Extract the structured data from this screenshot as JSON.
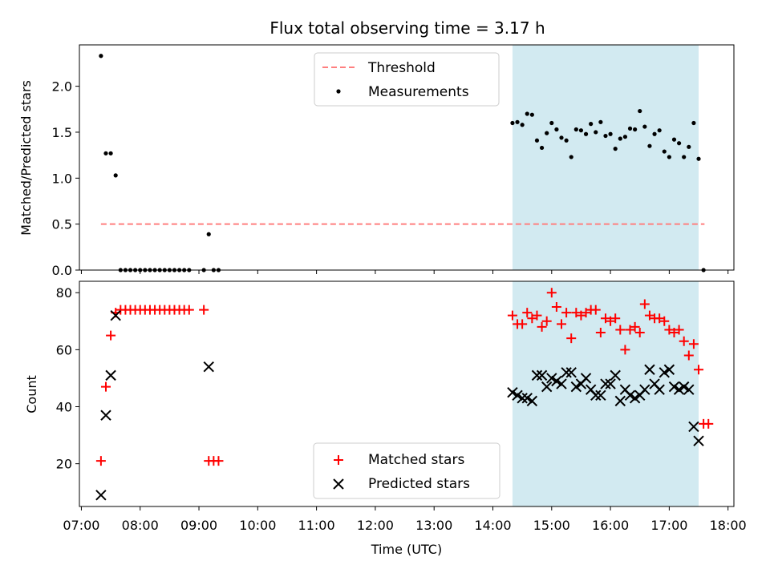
{
  "figure": {
    "title": "Flux total observing time = 3.17 h",
    "xlabel": "Time (UTC)",
    "x_tick_labels": [
      "07:00",
      "08:00",
      "09:00",
      "10:00",
      "11:00",
      "12:00",
      "13:00",
      "14:00",
      "15:00",
      "16:00",
      "17:00",
      "18:00"
    ],
    "shaded_span": {
      "start": "14:20",
      "end": "17:30",
      "color": "#add8e6"
    }
  },
  "chart_data": [
    {
      "type": "scatter",
      "panel": "top",
      "title": "Flux total observing time = 3.17 h",
      "xlabel": "",
      "ylabel": "Matched/Predicted stars",
      "xlim": [
        "06:58",
        "18:06"
      ],
      "ylim": [
        0,
        2.45
      ],
      "y_ticks": [
        "0.0",
        "0.5",
        "1.0",
        "1.5",
        "2.0"
      ],
      "legend": {
        "placement": "top-center"
      },
      "threshold": {
        "name": "Threshold",
        "value": 0.5,
        "x_range": [
          "07:20",
          "17:36"
        ],
        "color": "#ff7f7f",
        "style": "dashed"
      },
      "series": [
        {
          "name": "Measurements",
          "color": "#000000",
          "marker": "dot",
          "points": [
            [
              "07:20",
              2.33
            ],
            [
              "07:25",
              1.27
            ],
            [
              "07:30",
              1.27
            ],
            [
              "07:35",
              1.03
            ],
            [
              "07:40",
              0
            ],
            [
              "07:45",
              0
            ],
            [
              "07:50",
              0
            ],
            [
              "07:55",
              0
            ],
            [
              "08:00",
              0
            ],
            [
              "08:05",
              0
            ],
            [
              "08:10",
              0
            ],
            [
              "08:15",
              0
            ],
            [
              "08:20",
              0
            ],
            [
              "08:25",
              0
            ],
            [
              "08:30",
              0
            ],
            [
              "08:35",
              0
            ],
            [
              "08:40",
              0
            ],
            [
              "08:45",
              0
            ],
            [
              "08:50",
              0
            ],
            [
              "09:05",
              0
            ],
            [
              "09:10",
              0.39
            ],
            [
              "09:15",
              0
            ],
            [
              "09:20",
              0
            ],
            [
              "14:20",
              1.6
            ],
            [
              "14:25",
              1.61
            ],
            [
              "14:30",
              1.58
            ],
            [
              "14:35",
              1.7
            ],
            [
              "14:40",
              1.69
            ],
            [
              "14:45",
              1.41
            ],
            [
              "14:50",
              1.33
            ],
            [
              "14:55",
              1.49
            ],
            [
              "15:00",
              1.6
            ],
            [
              "15:05",
              1.53
            ],
            [
              "15:10",
              1.44
            ],
            [
              "15:15",
              1.41
            ],
            [
              "15:20",
              1.23
            ],
            [
              "15:25",
              1.53
            ],
            [
              "15:30",
              1.52
            ],
            [
              "15:35",
              1.48
            ],
            [
              "15:40",
              1.59
            ],
            [
              "15:45",
              1.5
            ],
            [
              "15:50",
              1.61
            ],
            [
              "15:55",
              1.46
            ],
            [
              "16:00",
              1.48
            ],
            [
              "16:05",
              1.32
            ],
            [
              "16:10",
              1.43
            ],
            [
              "16:15",
              1.45
            ],
            [
              "16:20",
              1.54
            ],
            [
              "16:25",
              1.53
            ],
            [
              "16:30",
              1.73
            ],
            [
              "16:35",
              1.56
            ],
            [
              "16:40",
              1.35
            ],
            [
              "16:45",
              1.48
            ],
            [
              "16:50",
              1.52
            ],
            [
              "16:55",
              1.29
            ],
            [
              "17:00",
              1.23
            ],
            [
              "17:05",
              1.42
            ],
            [
              "17:10",
              1.38
            ],
            [
              "17:15",
              1.23
            ],
            [
              "17:20",
              1.34
            ],
            [
              "17:25",
              1.6
            ],
            [
              "17:30",
              1.21
            ],
            [
              "17:35",
              0
            ]
          ]
        }
      ]
    },
    {
      "type": "scatter",
      "panel": "bottom",
      "xlabel": "Time (UTC)",
      "ylabel": "Count",
      "xlim": [
        "06:58",
        "18:06"
      ],
      "ylim": [
        5,
        84
      ],
      "y_ticks": [
        "20",
        "40",
        "60",
        "80"
      ],
      "legend": {
        "placement": "bottom-center"
      },
      "series": [
        {
          "name": "Matched stars",
          "color": "#ff0000",
          "marker": "plus",
          "points": [
            [
              "07:20",
              21
            ],
            [
              "07:25",
              47
            ],
            [
              "07:30",
              65
            ],
            [
              "07:35",
              73
            ],
            [
              "07:40",
              74
            ],
            [
              "07:45",
              74
            ],
            [
              "07:50",
              74
            ],
            [
              "07:55",
              74
            ],
            [
              "08:00",
              74
            ],
            [
              "08:05",
              74
            ],
            [
              "08:10",
              74
            ],
            [
              "08:15",
              74
            ],
            [
              "08:20",
              74
            ],
            [
              "08:25",
              74
            ],
            [
              "08:30",
              74
            ],
            [
              "08:35",
              74
            ],
            [
              "08:40",
              74
            ],
            [
              "08:45",
              74
            ],
            [
              "08:50",
              74
            ],
            [
              "09:05",
              74
            ],
            [
              "09:10",
              21
            ],
            [
              "09:15",
              21
            ],
            [
              "09:20",
              21
            ],
            [
              "14:20",
              72
            ],
            [
              "14:25",
              69
            ],
            [
              "14:30",
              69
            ],
            [
              "14:35",
              73
            ],
            [
              "14:40",
              71
            ],
            [
              "14:45",
              72
            ],
            [
              "14:50",
              68
            ],
            [
              "14:55",
              70
            ],
            [
              "15:00",
              80
            ],
            [
              "15:05",
              75
            ],
            [
              "15:10",
              69
            ],
            [
              "15:15",
              73
            ],
            [
              "15:20",
              64
            ],
            [
              "15:25",
              73
            ],
            [
              "15:30",
              72
            ],
            [
              "15:35",
              73
            ],
            [
              "15:40",
              74
            ],
            [
              "15:45",
              74
            ],
            [
              "15:50",
              66
            ],
            [
              "15:55",
              71
            ],
            [
              "16:00",
              70
            ],
            [
              "16:05",
              71
            ],
            [
              "16:10",
              67
            ],
            [
              "16:15",
              60
            ],
            [
              "16:20",
              67
            ],
            [
              "16:25",
              68
            ],
            [
              "16:30",
              66
            ],
            [
              "16:35",
              76
            ],
            [
              "16:40",
              72
            ],
            [
              "16:45",
              71
            ],
            [
              "16:50",
              71
            ],
            [
              "16:55",
              70
            ],
            [
              "17:00",
              67
            ],
            [
              "17:05",
              66
            ],
            [
              "17:10",
              67
            ],
            [
              "17:15",
              63
            ],
            [
              "17:20",
              58
            ],
            [
              "17:25",
              62
            ],
            [
              "17:30",
              53
            ],
            [
              "17:35",
              34
            ],
            [
              "17:40",
              34
            ]
          ]
        },
        {
          "name": "Predicted stars",
          "color": "#000000",
          "marker": "x",
          "points": [
            [
              "07:20",
              9
            ],
            [
              "07:25",
              37
            ],
            [
              "07:30",
              51
            ],
            [
              "07:35",
              72
            ],
            [
              "09:10",
              54
            ],
            [
              "14:20",
              45
            ],
            [
              "14:25",
              44
            ],
            [
              "14:30",
              43
            ],
            [
              "14:35",
              43
            ],
            [
              "14:40",
              42
            ],
            [
              "14:45",
              51
            ],
            [
              "14:50",
              51
            ],
            [
              "14:55",
              47
            ],
            [
              "15:00",
              50
            ],
            [
              "15:05",
              49
            ],
            [
              "15:10",
              48
            ],
            [
              "15:15",
              52
            ],
            [
              "15:20",
              52
            ],
            [
              "15:25",
              47
            ],
            [
              "15:30",
              48
            ],
            [
              "15:35",
              50
            ],
            [
              "15:40",
              46
            ],
            [
              "15:45",
              44
            ],
            [
              "15:50",
              44
            ],
            [
              "15:55",
              48
            ],
            [
              "16:00",
              48
            ],
            [
              "16:05",
              51
            ],
            [
              "16:10",
              42
            ],
            [
              "16:15",
              46
            ],
            [
              "16:20",
              44
            ],
            [
              "16:25",
              43
            ],
            [
              "16:30",
              44
            ],
            [
              "16:35",
              46
            ],
            [
              "16:40",
              53
            ],
            [
              "16:45",
              48
            ],
            [
              "16:50",
              46
            ],
            [
              "16:55",
              52
            ],
            [
              "17:00",
              53
            ],
            [
              "17:05",
              47
            ],
            [
              "17:10",
              46
            ],
            [
              "17:15",
              47
            ],
            [
              "17:20",
              46
            ],
            [
              "17:25",
              33
            ],
            [
              "17:30",
              28
            ]
          ]
        }
      ]
    }
  ]
}
